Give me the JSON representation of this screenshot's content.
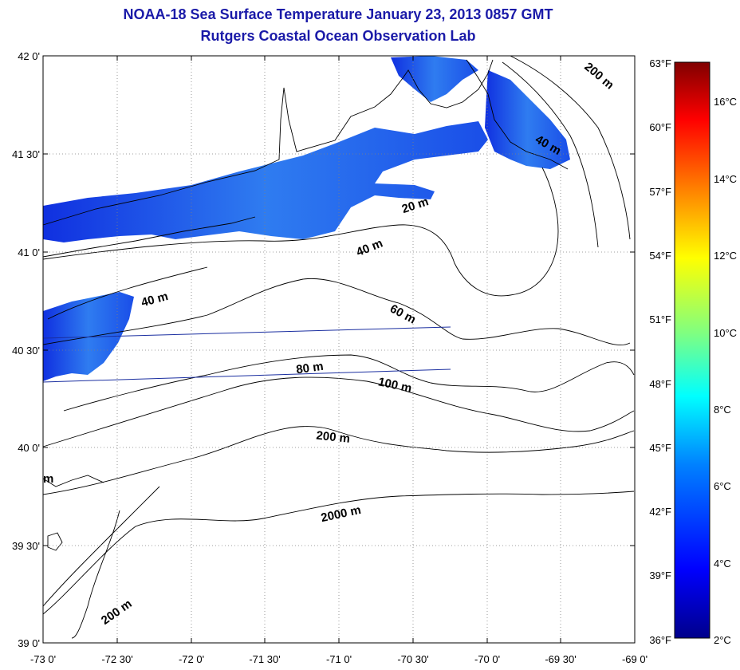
{
  "title": "NOAA-18 Sea Surface Temperature January 23, 2013 0857 GMT",
  "subtitle": "Rutgers Coastal Ocean Observation Lab",
  "map": {
    "lat_labels": [
      "42 0'",
      "41 30'",
      "41 0'",
      "40 30'",
      "40 0'",
      "39 30'",
      "39 0'"
    ],
    "lon_labels": [
      "-73 0'",
      "-72 30'",
      "-72 0'",
      "-71 30'",
      "-71 0'",
      "-70 30'",
      "-70 0'",
      "-69 30'",
      "-69 0'"
    ],
    "lat_range": [
      39.0,
      42.0
    ],
    "lon_range": [
      -73.0,
      -69.0
    ],
    "grid": true,
    "contour_labels": [
      "200 m",
      "40 m",
      "20 m",
      "40 m",
      "40 m",
      "60 m",
      "80 m",
      "100 m",
      "200 m",
      "2000 m",
      "200 m",
      "m"
    ]
  },
  "colorbar": {
    "fahrenheit_labels": [
      "63°F",
      "60°F",
      "57°F",
      "54°F",
      "51°F",
      "48°F",
      "45°F",
      "42°F",
      "39°F",
      "36°F"
    ],
    "celsius_labels": [
      "16°C",
      "14°C",
      "12°C",
      "10°C",
      "8°C",
      "6°C",
      "4°C",
      "2°C"
    ],
    "range_celsius": [
      2,
      17
    ],
    "colors": [
      "#00008b",
      "#0000ff",
      "#0080ff",
      "#00ffff",
      "#80ff80",
      "#ffff00",
      "#ff8000",
      "#ff0000",
      "#800000"
    ]
  }
}
